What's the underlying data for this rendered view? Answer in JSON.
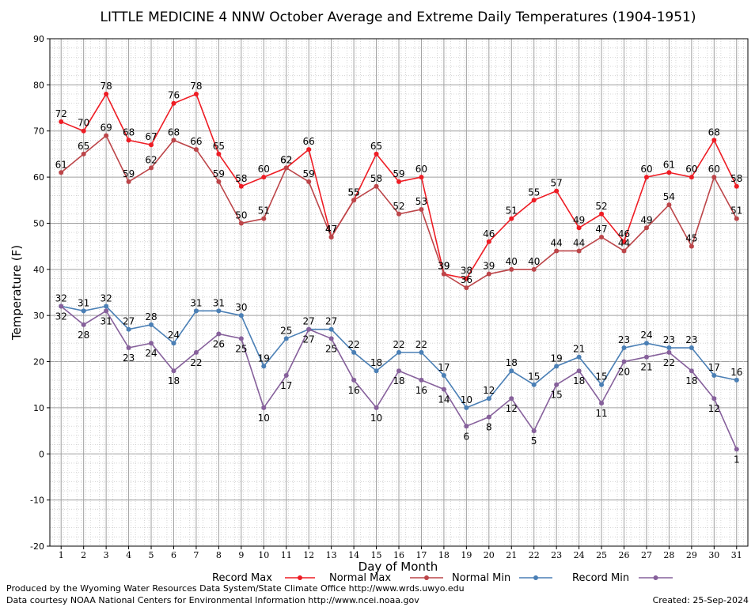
{
  "footer": {
    "produced_by": "Produced by the Wyoming Water Resources Data System/State Climate Office http://www.wrds.uwyo.edu",
    "data_courtesy": "Data courtesy NOAA National Centers for Environmental Information http://www.ncei.noaa.gov",
    "created": "Created:  25-Sep-2024"
  },
  "chart_data": {
    "type": "line",
    "title": "LITTLE MEDICINE 4 NNW October Average and Extreme Daily Temperatures (1904-1951)",
    "xlabel": "Day of Month",
    "ylabel": "Temperature (F)",
    "ylim": [
      -20,
      90
    ],
    "yticks": [
      -20,
      -10,
      0,
      10,
      20,
      30,
      40,
      50,
      60,
      70,
      80,
      90
    ],
    "x": [
      1,
      2,
      3,
      4,
      5,
      6,
      7,
      8,
      9,
      10,
      11,
      12,
      13,
      14,
      15,
      16,
      17,
      18,
      19,
      20,
      21,
      22,
      23,
      24,
      25,
      26,
      27,
      28,
      29,
      30,
      31
    ],
    "grid": true,
    "legend_position": "bottom",
    "series": [
      {
        "name": "Record Max",
        "color": "#ee1c24",
        "label_pos": "above",
        "values": [
          72,
          70,
          78,
          68,
          67,
          76,
          78,
          65,
          58,
          60,
          62,
          66,
          47,
          55,
          65,
          59,
          60,
          39,
          38,
          46,
          51,
          55,
          57,
          49,
          52,
          46,
          60,
          61,
          60,
          68,
          58
        ]
      },
      {
        "name": "Normal Max",
        "color": "#bc4549",
        "label_pos": "above",
        "values": [
          61,
          65,
          69,
          59,
          62,
          68,
          66,
          59,
          50,
          51,
          62,
          59,
          47,
          55,
          58,
          52,
          53,
          39,
          36,
          39,
          40,
          40,
          44,
          44,
          47,
          44,
          49,
          54,
          45,
          60,
          51
        ]
      },
      {
        "name": "Normal Min",
        "color": "#4a7fb5",
        "label_pos": "above",
        "values": [
          32,
          31,
          32,
          27,
          28,
          24,
          31,
          31,
          30,
          19,
          25,
          27,
          27,
          22,
          18,
          22,
          22,
          17,
          10,
          12,
          18,
          15,
          19,
          21,
          15,
          23,
          24,
          23,
          23,
          17,
          16
        ]
      },
      {
        "name": "Record Min",
        "color": "#86609b",
        "label_pos": "below",
        "values": [
          32,
          28,
          31,
          23,
          24,
          18,
          22,
          26,
          25,
          10,
          17,
          27,
          25,
          16,
          10,
          18,
          16,
          14,
          6,
          8,
          12,
          5,
          15,
          18,
          11,
          20,
          21,
          22,
          18,
          12,
          1
        ]
      }
    ]
  }
}
